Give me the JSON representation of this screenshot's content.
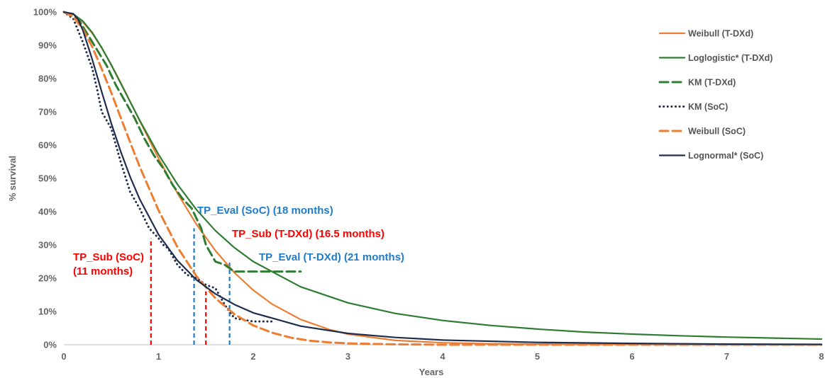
{
  "chart_data": {
    "type": "line",
    "title": "",
    "xlabel": "Years",
    "ylabel": "% survival",
    "xlim": [
      0,
      8
    ],
    "ylim": [
      0,
      100
    ],
    "x_ticks": [
      "0",
      "1",
      "2",
      "3",
      "4",
      "5",
      "6",
      "7",
      "8"
    ],
    "y_ticks": [
      "0%",
      "10%",
      "20%",
      "30%",
      "40%",
      "50%",
      "60%",
      "70%",
      "80%",
      "90%",
      "100%"
    ],
    "grid": false,
    "legend_position": "right",
    "series": [
      {
        "name": "Weibull (T-DXd)",
        "color": "#ED7D31",
        "style": "solid",
        "x": [
          0,
          0.1,
          0.2,
          0.3,
          0.4,
          0.5,
          0.6,
          0.8,
          1.0,
          1.2,
          1.4,
          1.6,
          1.8,
          2.0,
          2.2,
          2.5,
          2.8,
          3.0,
          3.5,
          4.0,
          4.5,
          5.0,
          5.5,
          6.0,
          8.0
        ],
        "y": [
          100,
          99.3,
          97,
          93.6,
          89.2,
          84.2,
          78.8,
          67.4,
          56,
          45.5,
          36.2,
          28.3,
          21.7,
          16.4,
          12.2,
          7.6,
          4.6,
          3.2,
          1.3,
          0.6,
          0.3,
          0.2,
          0.1,
          0.1,
          0
        ]
      },
      {
        "name": "Loglogistic* (T-DXd)",
        "color": "#2E7D32",
        "style": "solid",
        "x": [
          0,
          0.1,
          0.2,
          0.3,
          0.4,
          0.5,
          0.6,
          0.8,
          1.0,
          1.2,
          1.4,
          1.6,
          1.8,
          2.0,
          2.5,
          3.0,
          3.5,
          4.0,
          4.5,
          5.0,
          5.5,
          6.0,
          6.5,
          7.0,
          7.5,
          8.0
        ],
        "y": [
          100,
          99.4,
          97.3,
          93.8,
          89.3,
          84.1,
          78.6,
          67.5,
          57.2,
          48.2,
          40.6,
          34.3,
          29.2,
          25,
          17.4,
          12.6,
          9.4,
          7.3,
          5.8,
          4.7,
          3.8,
          3.2,
          2.7,
          2.3,
          2,
          1.7
        ]
      },
      {
        "name": "KM (T-DXd)",
        "color": "#2E7D32",
        "style": "dashed",
        "x": [
          0,
          0.15,
          0.3,
          0.45,
          0.5,
          0.55,
          0.65,
          0.75,
          0.85,
          0.95,
          1.05,
          1.15,
          1.25,
          1.35,
          1.45,
          1.5,
          1.6,
          1.7,
          1.8,
          2.5
        ],
        "y": [
          100,
          98,
          91,
          84,
          81,
          78,
          73,
          68,
          62,
          57,
          53,
          48,
          44,
          41,
          35,
          30,
          25,
          24,
          22,
          22
        ]
      },
      {
        "name": "KM (SoC)",
        "color": "#1F2D4D",
        "style": "dotted",
        "x": [
          0,
          0.1,
          0.2,
          0.3,
          0.35,
          0.4,
          0.5,
          0.55,
          0.6,
          0.7,
          0.8,
          0.9,
          1.0,
          1.05,
          1.1,
          1.2,
          1.3,
          1.4,
          1.5,
          1.6,
          1.7,
          1.8,
          2.0,
          2.2
        ],
        "y": [
          100,
          98,
          91,
          83,
          77,
          70,
          65,
          60,
          55,
          46,
          41,
          35,
          32,
          30,
          29,
          24,
          21,
          20,
          18,
          17,
          12,
          8,
          7,
          7
        ]
      },
      {
        "name": "Weibull (SoC)",
        "color": "#ED7D31",
        "style": "dashed",
        "x": [
          0,
          0.1,
          0.2,
          0.3,
          0.4,
          0.5,
          0.6,
          0.7,
          0.8,
          1.0,
          1.2,
          1.4,
          1.6,
          1.8,
          2.0,
          2.2,
          2.4,
          2.6,
          2.8,
          3.0,
          3.5,
          4.0,
          8.0
        ],
        "y": [
          100,
          98.6,
          94.9,
          89.5,
          82.9,
          75.8,
          68.3,
          60.9,
          53.6,
          40.4,
          29.3,
          20.6,
          14,
          9.2,
          5.8,
          3.6,
          2.1,
          1.2,
          0.7,
          0.4,
          0.1,
          0,
          0
        ]
      },
      {
        "name": "Lognormal* (SoC)",
        "color": "#1F2D4D",
        "style": "solid",
        "x": [
          0,
          0.1,
          0.15,
          0.2,
          0.3,
          0.4,
          0.5,
          0.6,
          0.7,
          0.8,
          1.0,
          1.2,
          1.4,
          1.6,
          1.8,
          2.0,
          2.5,
          3.0,
          3.5,
          4.0,
          5.0,
          6.0,
          7.0,
          8.0
        ],
        "y": [
          100,
          99.5,
          97.8,
          94.6,
          85.7,
          76,
          66.6,
          58.1,
          50.5,
          43.8,
          33.1,
          25.3,
          19.5,
          15.3,
          12.1,
          9.6,
          5.6,
          3.4,
          2.2,
          1.4,
          0.7,
          0.4,
          0.2,
          0.1
        ]
      }
    ],
    "reference_lines": [
      {
        "x": 0.92,
        "y_top": 32,
        "color": "#FF0000"
      },
      {
        "x": 1.375,
        "y_top": 35,
        "color": "#1E7CC8"
      },
      {
        "x": 1.5,
        "y_top": 16,
        "color": "#FF0000"
      },
      {
        "x": 1.75,
        "y_top": 25,
        "color": "#1E7CC8"
      }
    ],
    "annotations": [
      {
        "text": "TP_Eval (SoC) (18 months)",
        "color": "#1E7CC8"
      },
      {
        "text": "TP_Sub (T-DXd) (16.5 months)",
        "color": "#FF0000"
      },
      {
        "text": "TP_Eval (T-DXd) (21 months)",
        "color": "#1E7CC8"
      },
      {
        "text": "TP_Sub (SoC)",
        "color": "#FF0000"
      },
      {
        "text": "(11 months)",
        "color": "#FF0000"
      }
    ]
  }
}
